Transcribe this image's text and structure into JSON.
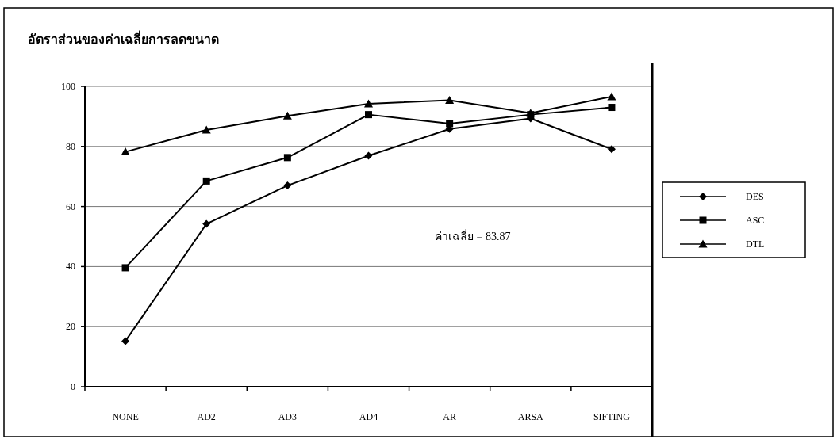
{
  "chart_data": {
    "type": "line",
    "title": "อัตราส่วนของค่าเฉลี่ยการลดขนาด",
    "categories": [
      "NONE",
      "AD2",
      "AD3",
      "AD4",
      "AR",
      "ARSA",
      "SIFTING"
    ],
    "series": [
      {
        "name": "DES",
        "color": "#000000",
        "marker": "diamond",
        "values": [
          15.2,
          54.2,
          67,
          76.9,
          85.8,
          89.3,
          79.1
        ]
      },
      {
        "name": "ASC",
        "color": "#000000",
        "marker": "square",
        "values": [
          39.6,
          68.5,
          76.3,
          90.6,
          87.6,
          90.6,
          93
        ]
      },
      {
        "name": "DTL",
        "color": "#000000",
        "marker": "triangle",
        "values": [
          78.2,
          85.5,
          90.2,
          94.2,
          95.4,
          91.1,
          96.6
        ]
      }
    ],
    "ylim": [
      0,
      100
    ],
    "yticks": [
      0,
      20,
      40,
      60,
      80,
      100
    ],
    "grid": "y",
    "legend": "right",
    "annotations": [
      "ค่าเฉลี่ย = 83.87"
    ]
  }
}
